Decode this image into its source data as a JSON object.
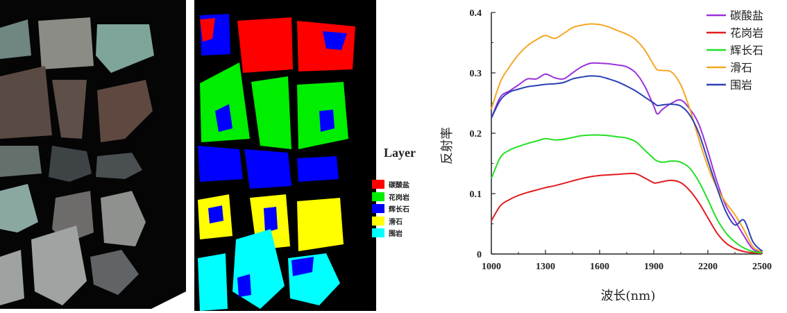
{
  "layer_legend": {
    "title": "Layer",
    "items": [
      {
        "label": "碳酸盐",
        "color": "#ff0000"
      },
      {
        "label": "花岗岩",
        "color": "#00ee00"
      },
      {
        "label": "辉长石",
        "color": "#0000ff"
      },
      {
        "label": "滑石",
        "color": "#ffff00"
      },
      {
        "label": "围岩",
        "color": "#00ffff"
      }
    ]
  },
  "chart_data": {
    "type": "line",
    "title": "",
    "xlabel": "波长(nm)",
    "ylabel": "反射率",
    "xlim": [
      1000,
      2500
    ],
    "ylim": [
      0,
      0.4
    ],
    "xticks": [
      1000,
      1300,
      1600,
      1900,
      2200,
      2500
    ],
    "yticks": [
      0,
      0.1,
      0.2,
      0.3,
      0.4
    ],
    "ytick_labels": [
      "0",
      "0.1",
      "0.2",
      "0.3",
      "0.4"
    ],
    "grid": false,
    "legend": "top-right",
    "x": [
      1000,
      1050,
      1100,
      1150,
      1200,
      1250,
      1300,
      1350,
      1400,
      1450,
      1500,
      1550,
      1600,
      1650,
      1700,
      1750,
      1800,
      1850,
      1900,
      1920,
      1950,
      2000,
      2050,
      2100,
      2150,
      2200,
      2250,
      2300,
      2350,
      2400,
      2450,
      2500
    ],
    "series": [
      {
        "name": "碳酸盐",
        "color": "#9b30d9",
        "values": [
          0.225,
          0.26,
          0.27,
          0.28,
          0.29,
          0.29,
          0.298,
          0.292,
          0.29,
          0.3,
          0.31,
          0.316,
          0.316,
          0.315,
          0.313,
          0.31,
          0.3,
          0.278,
          0.245,
          0.232,
          0.24,
          0.25,
          0.255,
          0.24,
          0.215,
          0.17,
          0.12,
          0.08,
          0.055,
          0.03,
          0.008,
          0.003
        ]
      },
      {
        "name": "花岗岩",
        "color": "#e31a1c",
        "values": [
          0.055,
          0.08,
          0.09,
          0.097,
          0.102,
          0.106,
          0.11,
          0.113,
          0.117,
          0.121,
          0.125,
          0.128,
          0.13,
          0.131,
          0.132,
          0.133,
          0.133,
          0.126,
          0.118,
          0.118,
          0.12,
          0.122,
          0.118,
          0.105,
          0.085,
          0.06,
          0.035,
          0.018,
          0.009,
          0.004,
          0.002,
          0.001
        ]
      },
      {
        "name": "辉长石",
        "color": "#22e022",
        "values": [
          0.125,
          0.16,
          0.172,
          0.178,
          0.183,
          0.187,
          0.191,
          0.189,
          0.19,
          0.193,
          0.196,
          0.197,
          0.197,
          0.196,
          0.194,
          0.192,
          0.186,
          0.172,
          0.158,
          0.154,
          0.152,
          0.154,
          0.152,
          0.142,
          0.12,
          0.09,
          0.058,
          0.035,
          0.02,
          0.01,
          0.004,
          0.002
        ]
      },
      {
        "name": "滑石",
        "color": "#f5a623",
        "values": [
          0.24,
          0.285,
          0.31,
          0.33,
          0.345,
          0.355,
          0.362,
          0.357,
          0.365,
          0.375,
          0.379,
          0.381,
          0.38,
          0.376,
          0.37,
          0.364,
          0.355,
          0.338,
          0.313,
          0.305,
          0.304,
          0.301,
          0.28,
          0.24,
          0.19,
          0.145,
          0.11,
          0.085,
          0.065,
          0.04,
          0.012,
          0.004
        ]
      },
      {
        "name": "围岩",
        "color": "#2a3fb5",
        "values": [
          0.225,
          0.255,
          0.268,
          0.273,
          0.277,
          0.279,
          0.281,
          0.282,
          0.284,
          0.29,
          0.293,
          0.295,
          0.294,
          0.29,
          0.285,
          0.278,
          0.27,
          0.26,
          0.25,
          0.246,
          0.247,
          0.248,
          0.245,
          0.23,
          0.2,
          0.155,
          0.11,
          0.07,
          0.048,
          0.056,
          0.02,
          0.005
        ]
      }
    ]
  }
}
